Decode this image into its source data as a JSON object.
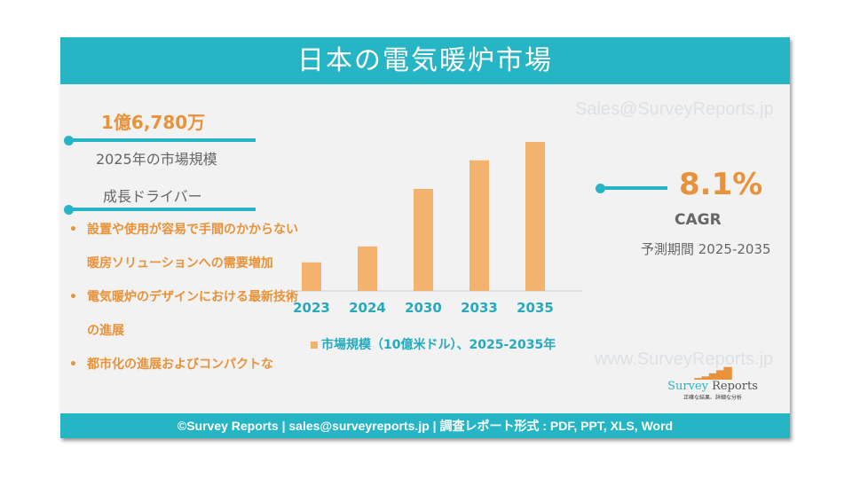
{
  "header": {
    "title": "日本の電気暖炉市場"
  },
  "left": {
    "market_size": "1億6,780万",
    "market_size_label": "2025年の市場規模",
    "drivers_title": "成長ドライバー",
    "drivers": [
      "設置や使用が容易で手間のかからない暖房ソリューションへの需要増加",
      "電気暖炉のデザインにおける最新技術の進展",
      "都市化の進展およびコンパクトな"
    ]
  },
  "right": {
    "cagr_value": "8.1%",
    "cagr_label": "CAGR",
    "period": "予測期間 2025-2035"
  },
  "watermarks": {
    "email": "Sales@SurveyReports.jp",
    "web": "www.SurveyReports.jp"
  },
  "logo": {
    "name1": "Survey",
    "name2": "Reports",
    "tagline": "正確な結果、詳細な分析"
  },
  "footer": {
    "text": "©Survey Reports | sales@surveyreports.jp |  調査レポート形式 : PDF, PPT, XLS, Word"
  },
  "colors": {
    "teal": "#26b5c5",
    "orange": "#e8923a",
    "bar": "#f4b26f"
  },
  "chart_data": {
    "type": "bar",
    "categories": [
      "2023",
      "2024",
      "2030",
      "2033",
      "2035"
    ],
    "values": [
      0.07,
      0.109,
      0.25,
      0.32,
      0.365
    ],
    "legend": "市場規模（10億米ドル）、2025-2035年",
    "ylim": [
      0,
      0.365
    ],
    "legend_position": "bottom"
  }
}
